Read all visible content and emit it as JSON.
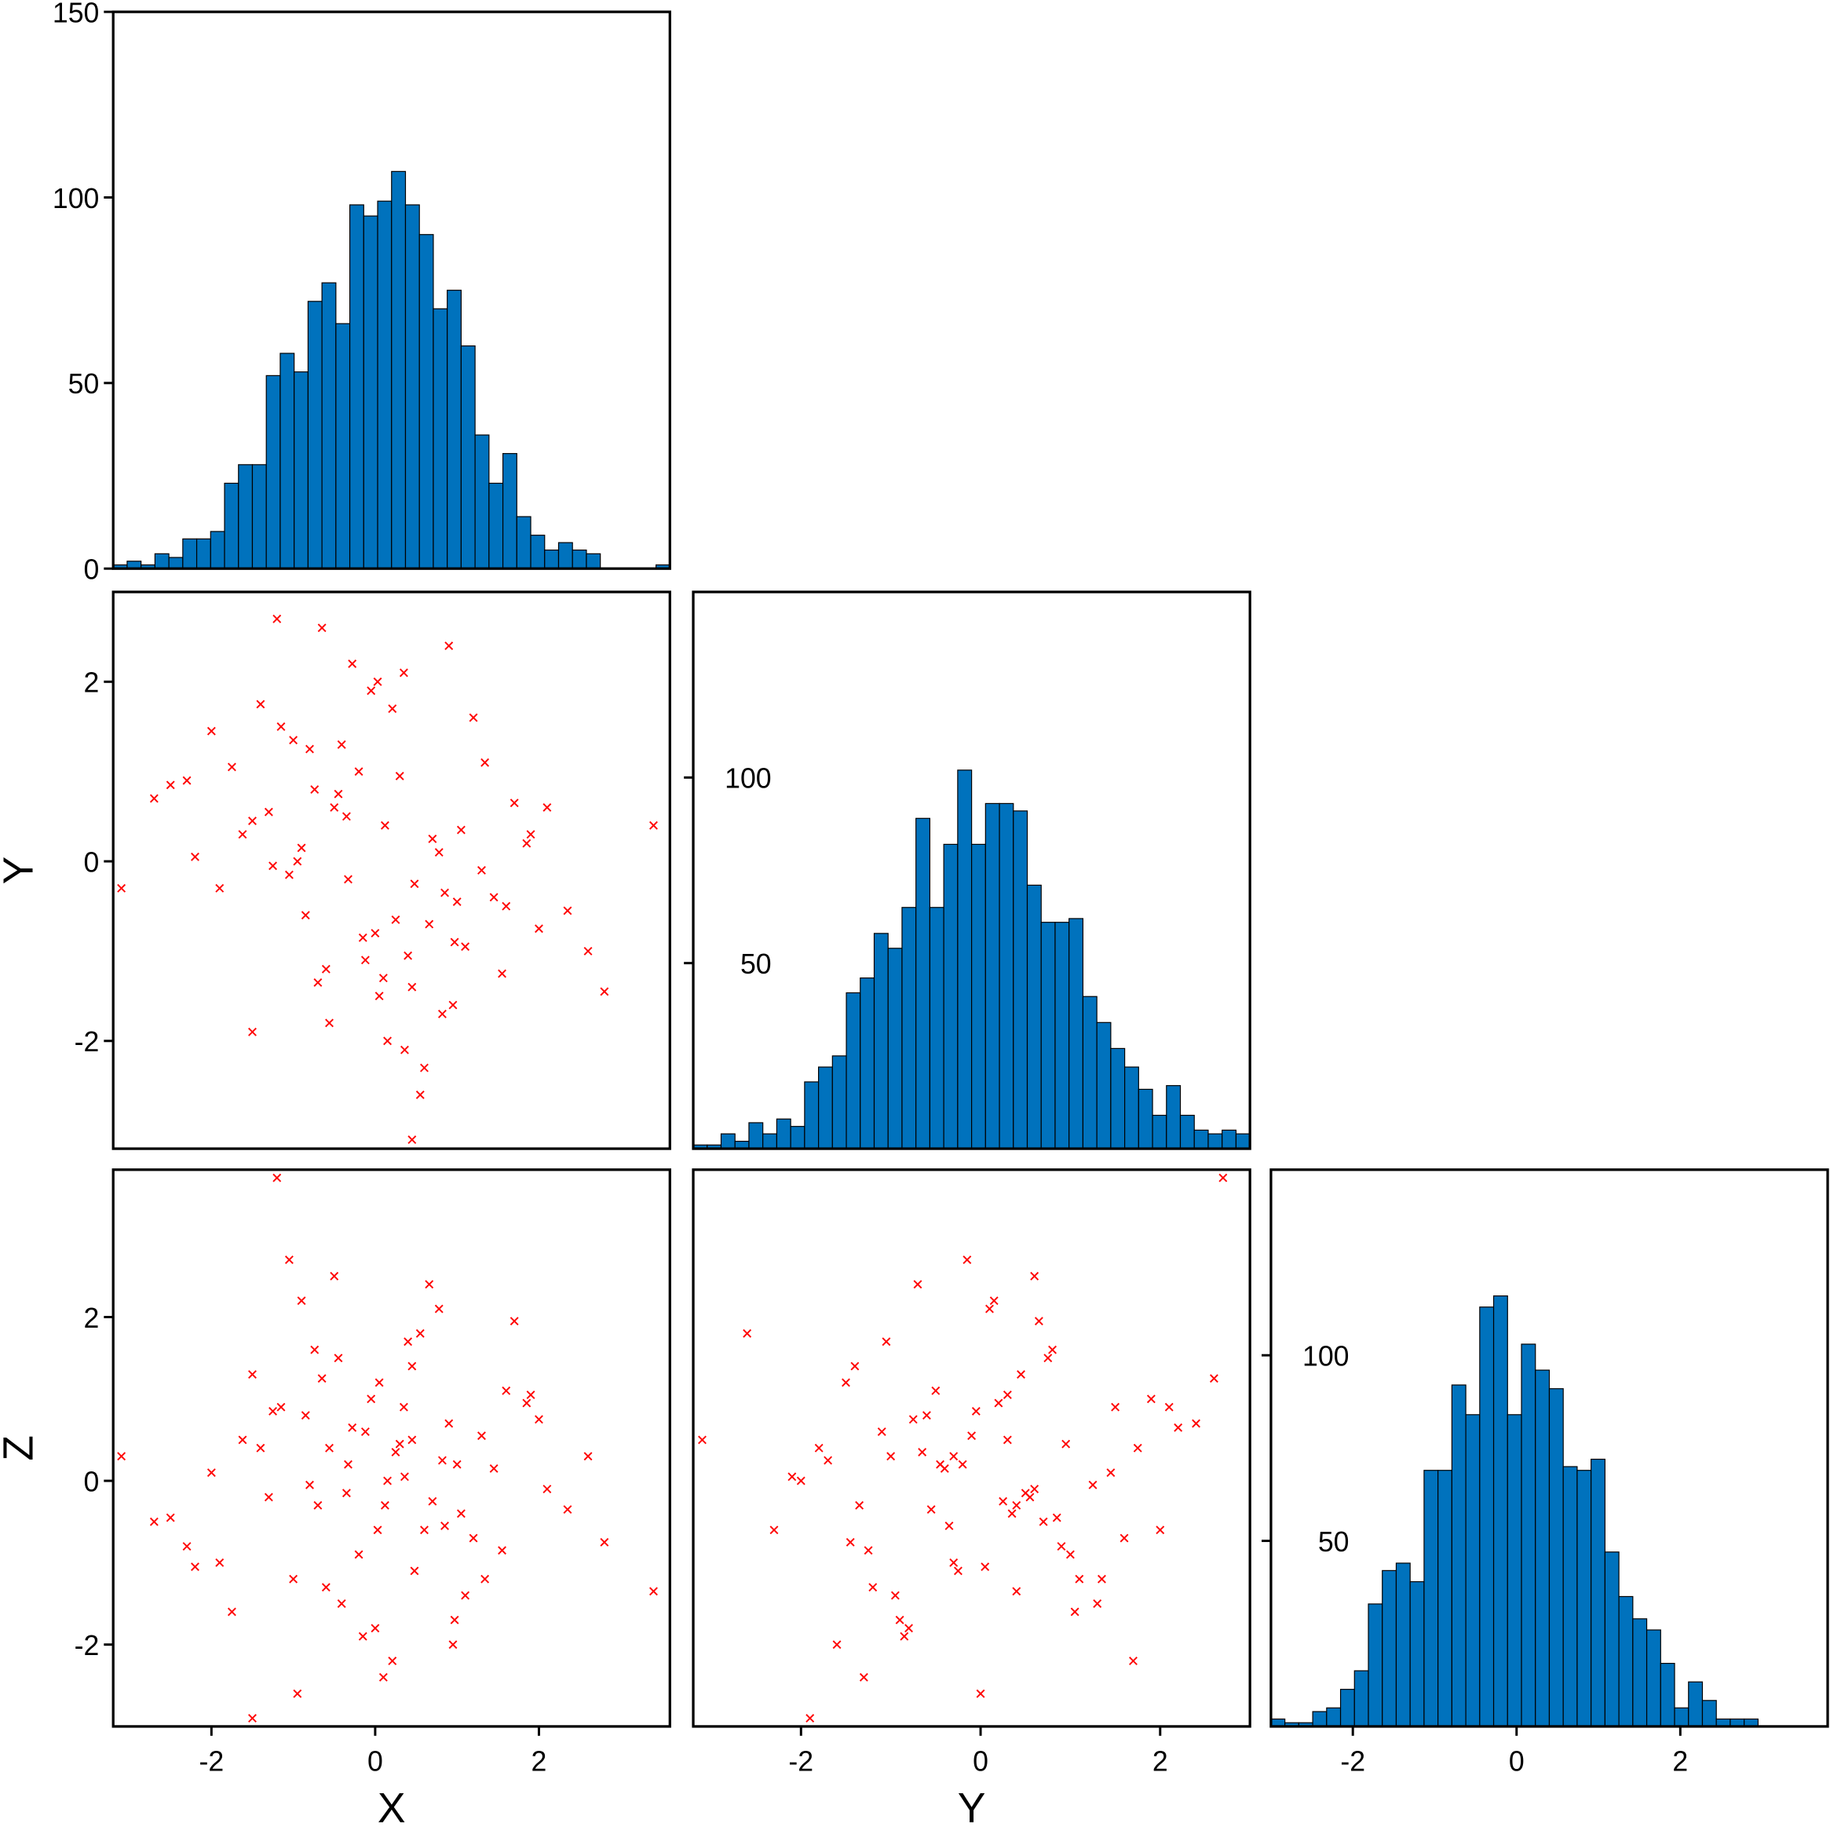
{
  "chart_data": [
    {
      "type": "histogram",
      "color": "#0072bd",
      "edgecolor": "#000000",
      "bins": [
        -3.2,
        -3.03,
        -2.86,
        -2.69,
        -2.52,
        -2.35,
        -2.18,
        -2.01,
        -1.84,
        -1.67,
        -1.5,
        -1.33,
        -1.16,
        -0.99,
        -0.82,
        -0.65,
        -0.48,
        -0.31,
        -0.14,
        0.03,
        0.2,
        0.37,
        0.54,
        0.71,
        0.88,
        1.05,
        1.22,
        1.39,
        1.56,
        1.73,
        1.9,
        2.07,
        2.24,
        2.41,
        2.58,
        2.75,
        2.92,
        3.09,
        3.26,
        3.43,
        3.6
      ],
      "counts": [
        1,
        2,
        1,
        4,
        3,
        8,
        8,
        10,
        23,
        28,
        28,
        52,
        58,
        53,
        72,
        77,
        66,
        98,
        95,
        99,
        107,
        98,
        90,
        70,
        75,
        60,
        36,
        23,
        31,
        14,
        9,
        5,
        7,
        5,
        4,
        0,
        0,
        0,
        0,
        1
      ],
      "xlim": [
        -3.2,
        3.6
      ],
      "ylim": [
        0,
        150
      ],
      "yticks": [
        0,
        50,
        100,
        150
      ],
      "ytick_position": "outside"
    },
    {
      "type": "scatter",
      "color": "#ff0000",
      "marker": "x",
      "ylabel": "Y",
      "x": [
        0.12,
        -0.85,
        1.34,
        -1.62,
        0.45,
        0.03,
        -0.33,
        0.97,
        -1.15,
        2.1,
        -0.56,
        0.78,
        -2.3,
        1.6,
        0.21,
        -0.12,
        1.05,
        -0.74,
        0.36,
        -1.9,
        2.6,
        -0.41,
        0.66,
        -1.3,
        0.9,
        0.05,
        -0.95,
        1.45,
        -0.2,
        0.55,
        -2.7,
        1.85,
        -0.6,
        0.3,
        -1.05,
        1.2,
        -0.15,
        0.82,
        -1.5,
        2.35,
        -0.28,
        0.48,
        -0.8,
        1.7,
        0.1,
        -1.25,
        0.6,
        -0.45,
        1.1,
        -2.0,
        3.4,
        -3.1,
        0.45,
        -1.2,
        -1.5,
        0.7,
        -0.05,
        1.55,
        -0.9,
        0.25,
        -1.75,
        2.0,
        -0.35,
        0.95,
        -0.65,
        1.3,
        -2.5,
        0.4,
        -1.0,
        0.15,
        2.8,
        -0.5,
        0.85,
        -1.4,
        0.0,
        1.9,
        -0.7,
        0.35,
        -2.2,
        1.0
      ],
      "y": [
        0.4,
        -0.6,
        1.1,
        0.3,
        -1.4,
        2.0,
        -0.2,
        -0.9,
        1.5,
        0.6,
        -1.8,
        0.1,
        0.9,
        -0.5,
        1.7,
        -1.1,
        0.35,
        0.8,
        -2.1,
        -0.3,
        -1.0,
        1.3,
        -0.7,
        0.55,
        2.4,
        -1.5,
        0.0,
        -0.4,
        1.0,
        -2.6,
        0.7,
        0.2,
        -1.2,
        0.95,
        -0.15,
        1.6,
        -0.85,
        -1.7,
        0.45,
        -0.55,
        2.2,
        -0.25,
        1.25,
        0.65,
        -1.3,
        -0.05,
        -2.3,
        0.75,
        -0.95,
        1.45,
        0.4,
        -0.3,
        -3.1,
        2.7,
        -1.9,
        0.25,
        1.9,
        -1.25,
        0.15,
        -0.65,
        1.05,
        -0.75,
        0.5,
        -1.6,
        2.6,
        -0.1,
        0.85,
        -1.05,
        1.35,
        -2.0,
        -1.45,
        0.6,
        -0.35,
        1.75,
        -0.8,
        0.3,
        -1.35,
        2.1,
        0.05,
        -0.45
      ],
      "xlim": [
        -3.2,
        3.6
      ],
      "ylim": [
        -3.2,
        3.0
      ],
      "yticks": [
        -2,
        0,
        2
      ],
      "ytick_position": "outside"
    },
    {
      "type": "histogram",
      "color": "#0072bd",
      "edgecolor": "#000000",
      "bins": [
        -3.2,
        -3.045,
        -2.89,
        -2.735,
        -2.58,
        -2.425,
        -2.27,
        -2.115,
        -1.96,
        -1.805,
        -1.65,
        -1.495,
        -1.34,
        -1.185,
        -1.03,
        -0.875,
        -0.72,
        -0.565,
        -0.41,
        -0.255,
        -0.1,
        0.055,
        0.21,
        0.365,
        0.52,
        0.675,
        0.83,
        0.985,
        1.14,
        1.295,
        1.45,
        1.605,
        1.76,
        1.915,
        2.07,
        2.225,
        2.38,
        2.535,
        2.69,
        2.845,
        3.0
      ],
      "counts": [
        1,
        1,
        4,
        2,
        7,
        4,
        8,
        6,
        18,
        22,
        25,
        42,
        46,
        58,
        54,
        65,
        89,
        65,
        82,
        102,
        82,
        93,
        93,
        91,
        71,
        61,
        61,
        62,
        41,
        34,
        27,
        22,
        16,
        9,
        17,
        9,
        5,
        4,
        5,
        4
      ],
      "xlim": [
        -3.2,
        3.0
      ],
      "ylim": [
        0,
        150
      ],
      "yticks": [
        50,
        100
      ],
      "ytick_position": "inside"
    },
    {
      "type": "scatter",
      "color": "#ff0000",
      "marker": "x",
      "xlabel": "X",
      "ylabel": "Z",
      "x": [
        0.12,
        -0.85,
        1.34,
        -1.62,
        0.45,
        0.03,
        -0.33,
        0.97,
        -1.15,
        2.1,
        -0.56,
        0.78,
        -2.3,
        1.6,
        0.21,
        -0.12,
        1.05,
        -0.74,
        0.36,
        -1.9,
        2.6,
        -0.41,
        0.66,
        -1.3,
        0.9,
        0.05,
        -0.95,
        1.45,
        -0.2,
        0.55,
        -2.7,
        1.85,
        -0.6,
        0.3,
        -1.05,
        1.2,
        -0.15,
        0.82,
        -1.5,
        2.35,
        -0.28,
        0.48,
        -0.8,
        1.7,
        0.1,
        -1.25,
        0.6,
        -0.45,
        1.1,
        -2.0,
        3.4,
        -3.1,
        0.45,
        -1.2,
        -1.5,
        0.7,
        -0.05,
        1.55,
        -0.9,
        0.25,
        -1.75,
        2.0,
        -0.35,
        0.95,
        -0.65,
        1.3,
        -2.5,
        0.4,
        -1.0,
        0.15,
        2.8,
        -0.5,
        0.85,
        -1.4,
        0.0,
        1.9,
        -0.7,
        0.35,
        -2.2,
        1.0
      ],
      "y": [
        -0.3,
        0.8,
        -1.2,
        0.5,
        1.4,
        -0.6,
        0.2,
        -1.7,
        0.9,
        -0.1,
        0.4,
        2.1,
        -0.8,
        1.1,
        -2.2,
        0.6,
        -0.4,
        1.6,
        0.05,
        -1.0,
        0.3,
        -1.5,
        2.4,
        -0.2,
        0.7,
        1.2,
        -2.6,
        0.15,
        -0.9,
        1.8,
        -0.5,
        0.95,
        -1.3,
        0.45,
        2.7,
        -0.7,
        -1.9,
        0.25,
        1.3,
        -0.35,
        0.65,
        -1.1,
        -0.05,
        1.95,
        -2.4,
        0.85,
        -0.6,
        1.5,
        -1.4,
        0.1,
        -1.35,
        0.3,
        0.5,
        3.7,
        -2.9,
        -0.25,
        1.0,
        -0.85,
        2.2,
        0.35,
        -1.6,
        0.75,
        -0.15,
        -2.0,
        1.25,
        0.55,
        -0.45,
        1.7,
        -1.2,
        0.0,
        -0.75,
        2.5,
        -0.55,
        0.4,
        -1.8,
        1.05,
        -0.3,
        0.9,
        -1.05,
        0.2
      ],
      "xlim": [
        -3.2,
        3.6
      ],
      "ylim": [
        -3.0,
        3.8
      ],
      "xticks": [
        -2,
        0,
        2
      ],
      "yticks": [
        -2,
        0,
        2
      ],
      "ytick_position": "outside"
    },
    {
      "type": "scatter",
      "color": "#ff0000",
      "marker": "x",
      "xlabel": "Y",
      "x": [
        0.4,
        -0.6,
        1.1,
        0.3,
        -1.4,
        2.0,
        -0.2,
        -0.9,
        1.5,
        0.6,
        -1.8,
        0.1,
        0.9,
        -0.5,
        1.7,
        -1.1,
        0.35,
        0.8,
        -2.1,
        -0.3,
        -1.0,
        1.3,
        -0.7,
        0.55,
        2.4,
        -1.5,
        0.0,
        -0.4,
        1.0,
        -2.6,
        0.7,
        0.2,
        -1.2,
        0.95,
        -0.15,
        1.6,
        -0.85,
        -1.7,
        0.45,
        -0.55,
        2.2,
        -0.25,
        1.25,
        0.65,
        -1.3,
        -0.05,
        -2.3,
        0.75,
        -0.95,
        1.45,
        0.4,
        -0.3,
        -3.1,
        2.7,
        -1.9,
        0.25,
        1.9,
        -1.25,
        0.15,
        -0.65,
        1.05,
        -0.75,
        0.5,
        -1.6,
        2.6,
        -0.1,
        0.85,
        -1.05,
        1.35,
        -2.0,
        -1.45,
        0.6,
        -0.35,
        1.75,
        -0.8,
        0.3,
        -1.35,
        2.1,
        0.05,
        -0.45
      ],
      "y": [
        -0.3,
        0.8,
        -1.2,
        0.5,
        1.4,
        -0.6,
        0.2,
        -1.7,
        0.9,
        -0.1,
        0.4,
        2.1,
        -0.8,
        1.1,
        -2.2,
        0.6,
        -0.4,
        1.6,
        0.05,
        -1.0,
        0.3,
        -1.5,
        2.4,
        -0.2,
        0.7,
        1.2,
        -2.6,
        0.15,
        -0.9,
        1.8,
        -0.5,
        0.95,
        -1.3,
        0.45,
        2.7,
        -0.7,
        -1.9,
        0.25,
        1.3,
        -0.35,
        0.65,
        -1.1,
        -0.05,
        1.95,
        -2.4,
        0.85,
        -0.6,
        1.5,
        -1.4,
        0.1,
        -1.35,
        0.3,
        0.5,
        3.7,
        -2.9,
        -0.25,
        1.0,
        -0.85,
        2.2,
        0.35,
        -1.6,
        0.75,
        -0.15,
        -2.0,
        1.25,
        0.55,
        -0.45,
        1.7,
        -1.2,
        0.0,
        -0.75,
        2.5,
        -0.55,
        0.4,
        -1.8,
        1.05,
        -0.3,
        0.9,
        -1.05,
        0.2
      ],
      "xlim": [
        -3.2,
        3.0
      ],
      "ylim": [
        -3.0,
        3.8
      ],
      "xticks": [
        -2,
        0,
        2
      ]
    },
    {
      "type": "histogram",
      "color": "#0072bd",
      "edgecolor": "#000000",
      "bins": [
        -3.0,
        -2.83,
        -2.66,
        -2.49,
        -2.32,
        -2.15,
        -1.98,
        -1.81,
        -1.64,
        -1.47,
        -1.3,
        -1.13,
        -0.96,
        -0.79,
        -0.62,
        -0.45,
        -0.28,
        -0.11,
        0.06,
        0.23,
        0.4,
        0.57,
        0.74,
        0.91,
        1.08,
        1.25,
        1.42,
        1.59,
        1.76,
        1.93,
        2.1,
        2.27,
        2.44,
        2.61,
        2.78,
        2.95,
        3.12,
        3.29,
        3.46,
        3.63,
        3.8
      ],
      "counts": [
        2,
        1,
        1,
        4,
        5,
        10,
        15,
        33,
        42,
        44,
        39,
        69,
        69,
        92,
        84,
        113,
        116,
        84,
        103,
        96,
        91,
        70,
        69,
        72,
        47,
        35,
        29,
        26,
        17,
        5,
        12,
        7,
        2,
        2,
        2,
        0,
        0,
        0,
        0,
        0
      ],
      "xlim": [
        -3.0,
        3.8
      ],
      "ylim": [
        0,
        150
      ],
      "xticks": [
        -2,
        0,
        2
      ],
      "yticks": [
        50,
        100
      ],
      "ytick_position": "inside"
    }
  ]
}
